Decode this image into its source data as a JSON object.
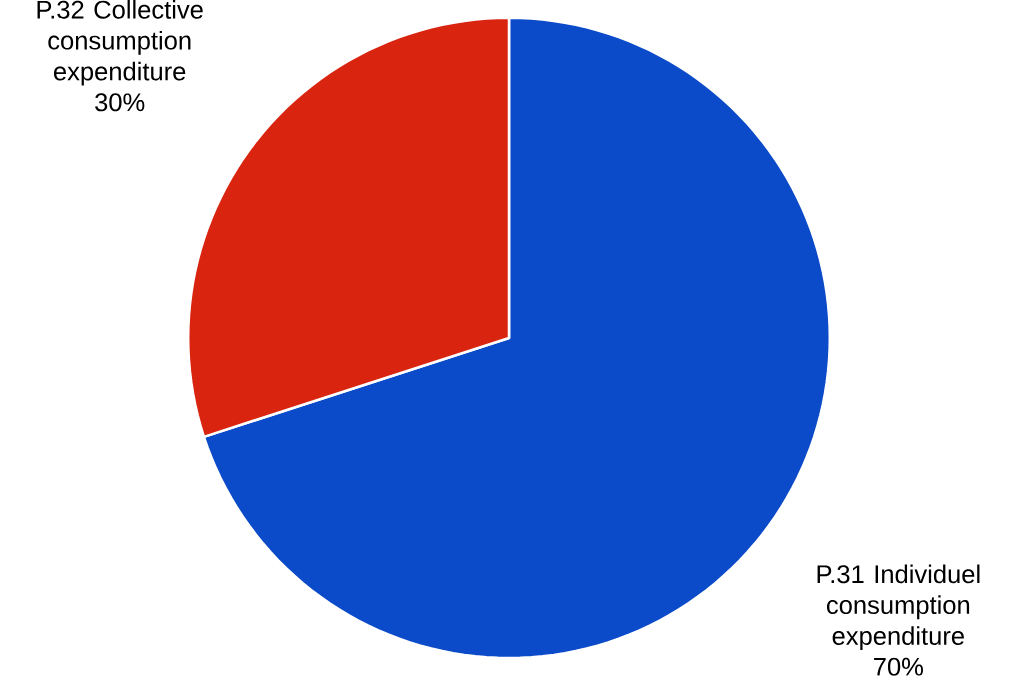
{
  "chart_data": {
    "type": "pie",
    "categories": [
      "P.31 Individuel consumption expenditure",
      "P.32 Collective consumption expenditure"
    ],
    "values": [
      70,
      30
    ],
    "value_labels": [
      "70%",
      "30%"
    ],
    "colors": [
      "#0b4ac8",
      "#d92410"
    ]
  }
}
